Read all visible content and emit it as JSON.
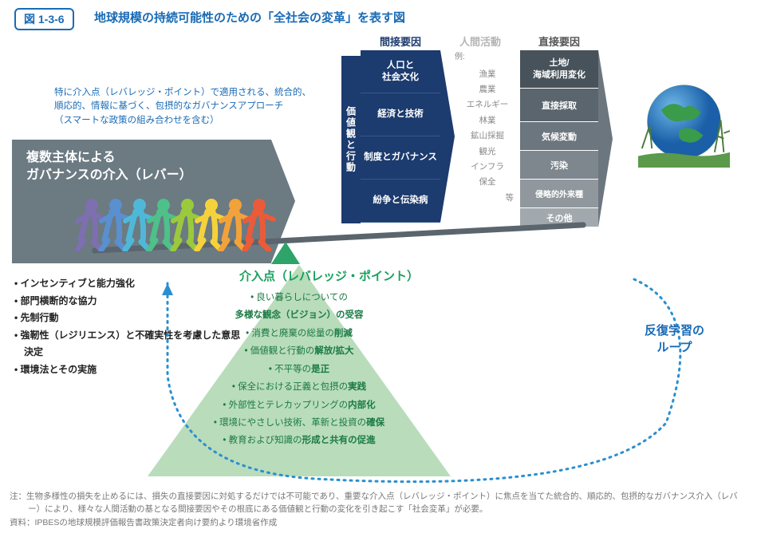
{
  "figure": {
    "label": "図 1-3-6",
    "title": "地球規模の持続可能性のための「全社会の変革」を表す図"
  },
  "approachNote": {
    "l1": "特に介入点（レバレッジ・ポイント）で適用される、統合的、",
    "l2": "順応的、情報に基づく、包摂的なガバナンスアプローチ",
    "l3": "（スマートな政策の組み合わせを含む）"
  },
  "leverBox": {
    "l1": "複数主体による",
    "l2": "ガバナンスの介入（レバー）"
  },
  "leverItems": {
    "i1": "• インセンティブと能力強化",
    "i2": "• 部門横断的な協力",
    "i3": "• 先制行動",
    "i4": "• 強靭性（レジリエンス）と不確実性を考慮した意思決定",
    "i5": "• 環境法とその実施"
  },
  "headers": {
    "indirect": "間接要因",
    "activity": "人間活動",
    "direct": "直接要因"
  },
  "valuesTab": "価値観と行動",
  "indirect": {
    "r1": "人口と\n社会文化",
    "r2": "経済と技術",
    "r3": "制度とガバナンス",
    "r4": "紛争と伝染病"
  },
  "activity": {
    "ex": "例:",
    "a1": "漁業",
    "a2": "農業",
    "a3": "エネルギー",
    "a4": "林業",
    "a5": "鉱山採掘",
    "a6": "観光",
    "a7": "インフラ",
    "a8": "保全",
    "etc": "等"
  },
  "direct": {
    "d1": "土地/\n海域利用変化",
    "d2": "直接採取",
    "d3": "気候変動",
    "d4": "汚染",
    "d5": "侵略的外来種",
    "d6": "その他"
  },
  "pyramid": {
    "title": "介入点（レバレッジ・ポイント）",
    "p1a": "• 良い暮らしについての",
    "p1b": "多様な観念（ビジョン）の受容",
    "p2a": "• 消費と廃棄の総量の",
    "p2b": "削減",
    "p3a": "• 価値観と行動の",
    "p3b": "解放/拡大",
    "p4a": "• 不平等の",
    "p4b": "是正",
    "p5a": "• 保全における正義と包摂の",
    "p5b": "実践",
    "p6a": "• 外部性とテレカップリングの",
    "p6b": "内部化",
    "p7a": "• 環境にやさしい技術、革新と投資の",
    "p7b": "確保",
    "p8a": "• 教育および知識の",
    "p8b": "形成と共有の促進"
  },
  "loopLabel": {
    "l1": "反復学習の",
    "l2": "ループ"
  },
  "footnote": {
    "note": "注：生物多様性の損失を止めるには、損失の直接要因に対処するだけでは不可能であり、重要な介入点（レバレッジ・ポイント）に焦点を当てた統合的、順応的、包摂的なガバナンス介入（レバー）により、様々な人間活動の基となる間接要因やその根底にある価値観と行動の変化を引き起こす「社会変革」が必要。",
    "source": "資料：IPBESの地球規模評価報告書政策決定者向け要約より環境省作成"
  },
  "colors": {
    "people": [
      "#7d6fb0",
      "#5a8fd0",
      "#4fb8d8",
      "#4ec08a",
      "#9bc93c",
      "#f5d23b",
      "#f2a23a",
      "#ea5b3a"
    ],
    "loopStroke": "#2a8fd1"
  }
}
